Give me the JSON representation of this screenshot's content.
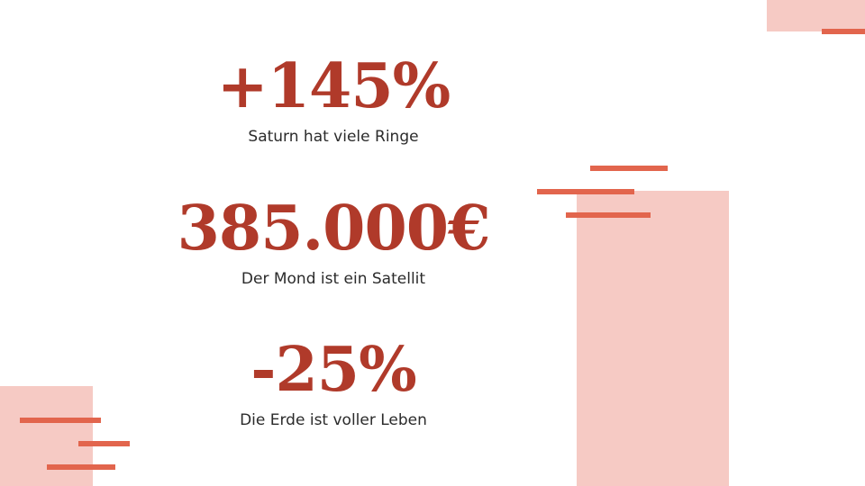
{
  "slide": {
    "accent_color": "#e2654d",
    "value_color": "#b03a2a",
    "panel_color": "#f6cac4",
    "stats": [
      {
        "value": "+145%",
        "caption": "Saturn hat viele Ringe"
      },
      {
        "value": "385.000€",
        "caption": "Der Mond ist ein Satellit"
      },
      {
        "value": "-25%",
        "caption": "Die Erde ist voller Leben"
      }
    ]
  }
}
